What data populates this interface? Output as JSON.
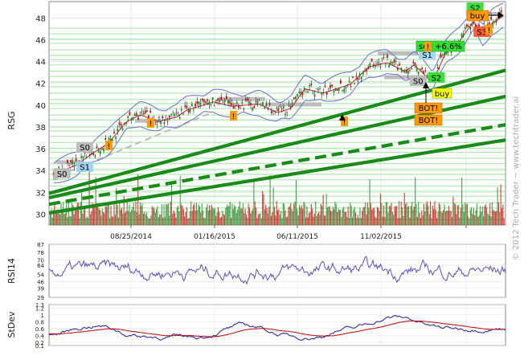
{
  "chart_data": [
    {
      "type": "candlestick",
      "panel": "price",
      "ylabel": "RSG",
      "ylim": [
        29,
        49.5
      ],
      "yticks": [
        30,
        32,
        34,
        36,
        38,
        40,
        42,
        44,
        46,
        48
      ],
      "x_tick_labels": [
        "08/25/2014",
        "01/16/2015",
        "06/11/2015",
        "11/02/2015"
      ],
      "grid": true,
      "price_path": [
        [
          0,
          33.6
        ],
        [
          0.06,
          34.6
        ],
        [
          0.1,
          35.8
        ],
        [
          0.13,
          36.6
        ],
        [
          0.17,
          38.6
        ],
        [
          0.2,
          39.2
        ],
        [
          0.24,
          38.6
        ],
        [
          0.28,
          39.0
        ],
        [
          0.3,
          39.6
        ],
        [
          0.36,
          40.4
        ],
        [
          0.4,
          40.0
        ],
        [
          0.46,
          40.2
        ],
        [
          0.5,
          39.4
        ],
        [
          0.53,
          39.8
        ],
        [
          0.56,
          41.6
        ],
        [
          0.6,
          41.2
        ],
        [
          0.63,
          41.6
        ],
        [
          0.66,
          42.0
        ],
        [
          0.7,
          43.6
        ],
        [
          0.74,
          44.0
        ],
        [
          0.78,
          43.2
        ],
        [
          0.8,
          43.8
        ],
        [
          0.84,
          42.2
        ],
        [
          0.87,
          45.0
        ],
        [
          0.9,
          46.0
        ],
        [
          0.93,
          47.8
        ],
        [
          0.95,
          46.4
        ],
        [
          0.97,
          47.6
        ],
        [
          1.0,
          48.4
        ]
      ],
      "trend_lines": [
        {
          "style": "solid",
          "from": [
            0,
            31.9
          ],
          "to": [
            1,
            43.2
          ]
        },
        {
          "style": "solid",
          "from": [
            0,
            31.5
          ],
          "to": [
            1,
            40.8
          ]
        },
        {
          "style": "dashed",
          "from": [
            0,
            30.9
          ],
          "to": [
            1,
            38.2
          ]
        },
        {
          "style": "solid",
          "from": [
            0,
            30.1
          ],
          "to": [
            1,
            36.8
          ]
        }
      ],
      "level_labels": [
        {
          "text": "S0",
          "color": "#bbbbbb",
          "price": 33.7
        },
        {
          "text": "S1",
          "color": "#9fd4f0",
          "price": 34.3
        },
        {
          "text": "S0",
          "color": "#bbbbbb",
          "price": 36.1
        },
        {
          "text": "S0",
          "color": "#bbbbbb",
          "price": 42.2
        },
        {
          "text": "S1",
          "color": "#9fd4f0",
          "price": 44.6
        },
        {
          "text": "S2",
          "color": "#33dd33",
          "price": 42.5
        },
        {
          "text": "S2",
          "color": "#33dd33",
          "price": 48.9
        },
        {
          "text": "S3",
          "color": "#ff5533",
          "price": 46.7
        }
      ],
      "annotations": [
        {
          "text": "buy",
          "color": "#ffff00"
        },
        {
          "text": "sell +6.6%",
          "color": "#33dd33"
        },
        {
          "text": "buy",
          "color": "#ff9900"
        },
        {
          "text": "BOT!",
          "color": "#ff9900"
        },
        {
          "text": "BOT!",
          "color": "#ff9900"
        },
        {
          "text": "!",
          "color": "#ff9900"
        }
      ],
      "watermark": "© 2012 Tech Trader ~ www.techtrader.ai"
    },
    {
      "type": "line",
      "panel": "rsi",
      "ylabel": "RSI14",
      "ylim": [
        29,
        87
      ],
      "yticks": [
        29,
        39,
        46,
        54,
        64,
        70,
        78,
        87
      ],
      "series": [
        {
          "color": "#5b4fc2"
        }
      ]
    },
    {
      "type": "line",
      "panel": "stdev",
      "ylabel": "StDev",
      "ylim": [
        0.1,
        1.3
      ],
      "yticks": [
        0.1,
        0.2,
        0.4,
        0.6,
        0.8,
        1.0,
        1.2,
        1.3
      ],
      "series": [
        {
          "color": "#1d1da0"
        },
        {
          "color": "#c01818"
        }
      ]
    }
  ]
}
